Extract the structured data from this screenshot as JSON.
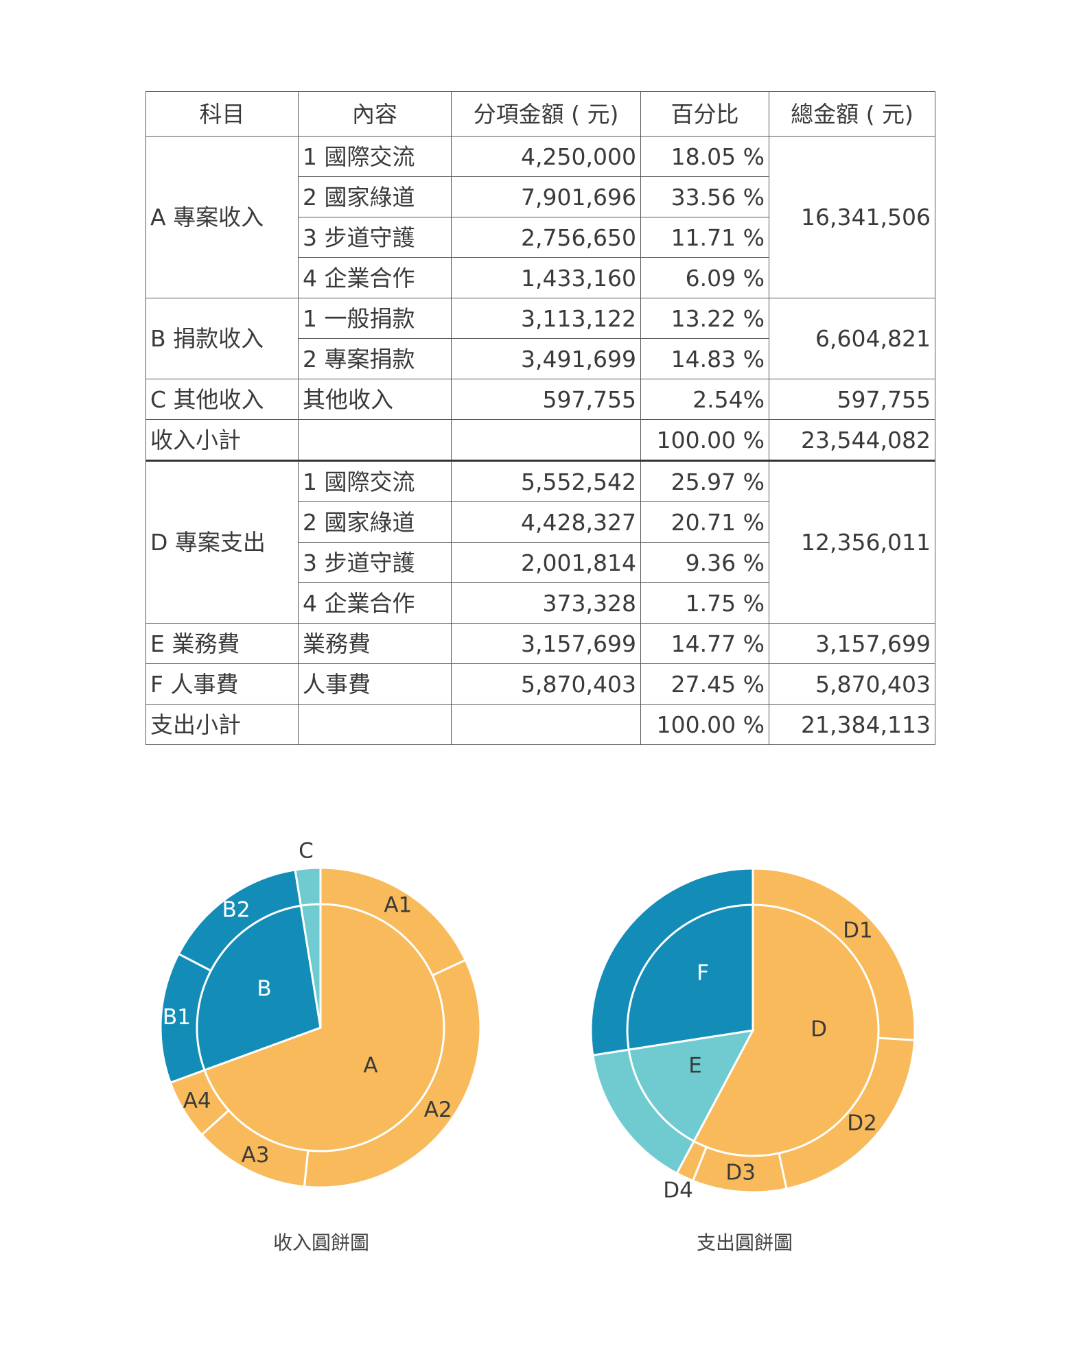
{
  "table": {
    "headers": [
      "科目",
      "內容",
      "分項金額 ( 元)",
      "百分比",
      "總金額 ( 元)"
    ],
    "income": [
      {
        "category": "A 專案收入",
        "total": "16,341,506",
        "items": [
          {
            "content": "1 國際交流",
            "amount": "4,250,000",
            "percent": "18.05 %"
          },
          {
            "content": "2 國家綠道",
            "amount": "7,901,696",
            "percent": "33.56 %"
          },
          {
            "content": "3 步道守護",
            "amount": "2,756,650",
            "percent": "11.71 %"
          },
          {
            "content": "4 企業合作",
            "amount": "1,433,160",
            "percent": "6.09 %"
          }
        ]
      },
      {
        "category": "B 捐款收入",
        "total": "6,604,821",
        "items": [
          {
            "content": "1 一般捐款",
            "amount": "3,113,122",
            "percent": "13.22 %"
          },
          {
            "content": "2 專案捐款",
            "amount": "3,491,699",
            "percent": "14.83 %"
          }
        ]
      },
      {
        "category": "C 其他收入",
        "total": "597,755",
        "items": [
          {
            "content": "其他收入",
            "amount": "597,755",
            "percent": "2.54%"
          }
        ]
      }
    ],
    "income_subtotal": {
      "label": "收入小計",
      "percent": "100.00 %",
      "total": "23,544,082"
    },
    "expense": [
      {
        "category": "D 專案支出",
        "total": "12,356,011",
        "items": [
          {
            "content": "1 國際交流",
            "amount": "5,552,542",
            "percent": "25.97 %"
          },
          {
            "content": "2 國家綠道",
            "amount": "4,428,327",
            "percent": "20.71 %"
          },
          {
            "content": "3 步道守護",
            "amount": "2,001,814",
            "percent": "9.36 %"
          },
          {
            "content": "4 企業合作",
            "amount": "373,328",
            "percent": "1.75 %"
          }
        ]
      },
      {
        "category": "E 業務費",
        "total": "3,157,699",
        "items": [
          {
            "content": "業務費",
            "amount": "3,157,699",
            "percent": "14.77 %"
          }
        ]
      },
      {
        "category": "F 人事費",
        "total": "5,870,403",
        "items": [
          {
            "content": "人事費",
            "amount": "5,870,403",
            "percent": "27.45 %"
          }
        ]
      }
    ],
    "expense_subtotal": {
      "label": "支出小計",
      "percent": "100.00 %",
      "total": "21,384,113"
    }
  },
  "colors": {
    "orange": "#F8BA5B",
    "blue": "#138DB8",
    "teal": "#6FCBCF",
    "text": "#3a3a3a",
    "border": "#555555"
  },
  "chart_data": [
    {
      "type": "pie",
      "subtype": "nested-donut",
      "caption": "收入圓餅圖",
      "inner": [
        {
          "label": "A",
          "value": 16341506,
          "color": "orange"
        },
        {
          "label": "B",
          "value": 6604821,
          "color": "blue"
        },
        {
          "label": "C",
          "value": 597755,
          "color": "teal"
        }
      ],
      "outer": [
        {
          "label": "A1",
          "value": 4250000,
          "color": "orange"
        },
        {
          "label": "A2",
          "value": 7901696,
          "color": "orange"
        },
        {
          "label": "A3",
          "value": 2756650,
          "color": "orange"
        },
        {
          "label": "A4",
          "value": 1433160,
          "color": "orange"
        },
        {
          "label": "B1",
          "value": 3113122,
          "color": "blue"
        },
        {
          "label": "B2",
          "value": 3491699,
          "color": "blue"
        },
        {
          "label": "C",
          "value": 597755,
          "color": "teal"
        }
      ]
    },
    {
      "type": "pie",
      "subtype": "nested-donut",
      "caption": "支出圓餅圖",
      "inner": [
        {
          "label": "D",
          "value": 12356011,
          "color": "orange"
        },
        {
          "label": "E",
          "value": 3157699,
          "color": "teal"
        },
        {
          "label": "F",
          "value": 5870403,
          "color": "blue"
        }
      ],
      "outer": [
        {
          "label": "D1",
          "value": 5552542,
          "color": "orange"
        },
        {
          "label": "D2",
          "value": 4428327,
          "color": "orange"
        },
        {
          "label": "D3",
          "value": 2001814,
          "color": "orange"
        },
        {
          "label": "D4",
          "value": 373328,
          "color": "orange"
        },
        {
          "label": "E",
          "value": 3157699,
          "color": "teal"
        },
        {
          "label": "F",
          "value": 5870403,
          "color": "blue"
        }
      ]
    }
  ]
}
